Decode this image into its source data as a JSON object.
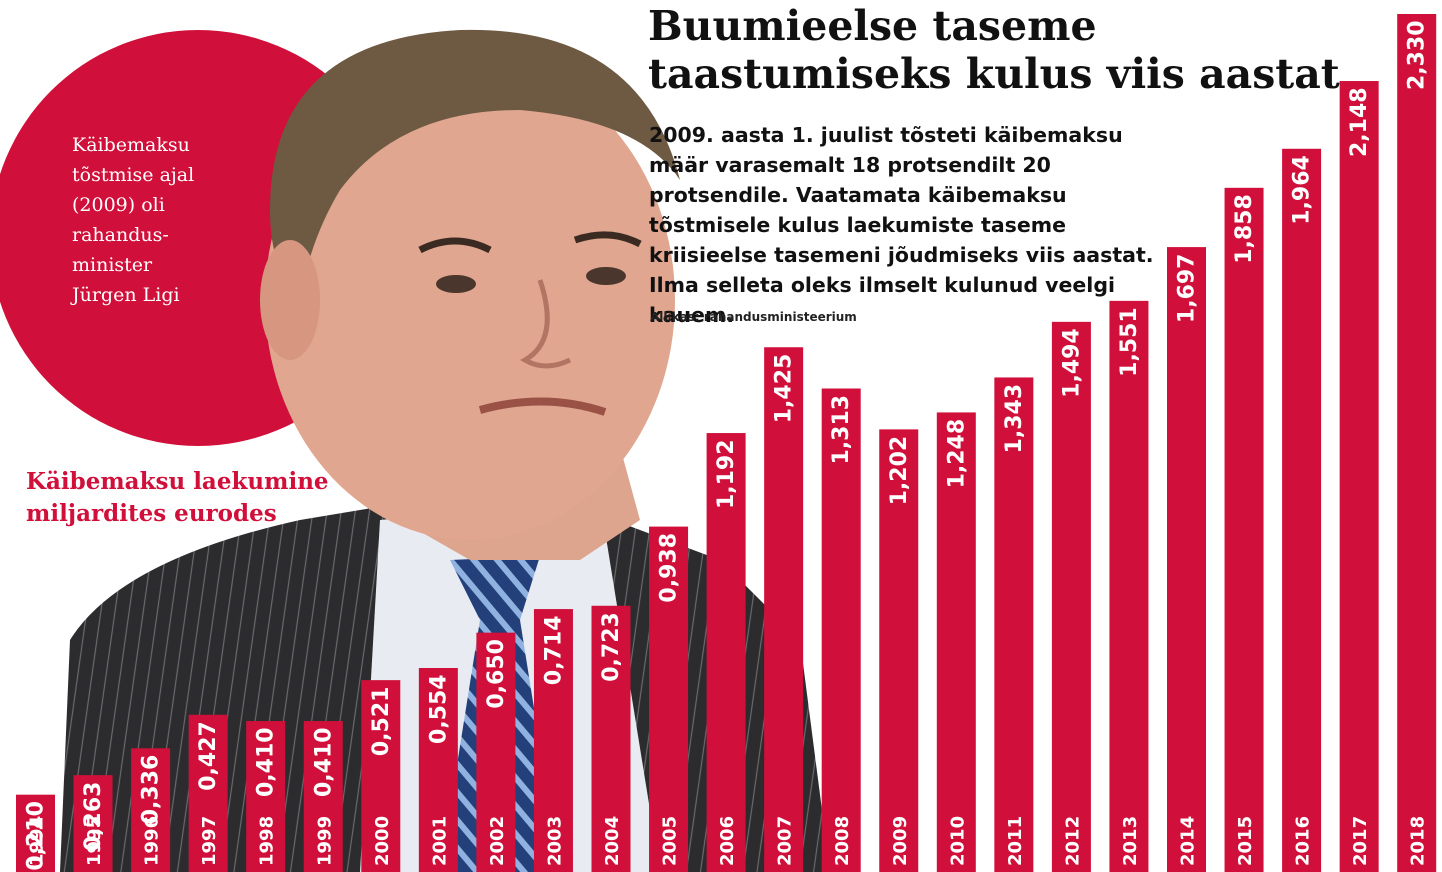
{
  "colors": {
    "accent": "#d0103a",
    "text": "#111111",
    "bar_label": "#ffffff"
  },
  "headline": "Buumieelse taseme taastumiseks kulus viis aastat",
  "description": "2009. aasta 1. juulist tõsteti käibemaksu määr varasemalt 18 protsendilt 20 protsendile. Vaatamata käibemaksu tõstmisele kulus laekumiste taseme kriisieelse tasemeni jõudmiseks viis aastat. Ilma selleta oleks ilmselt kulunud veelgi kauem.",
  "source": "Allikas: rahandusministeerium",
  "photo_caption": "Käibemaksu tõstmise ajal (2009) oli rahandus-minister Jürgen Ligi",
  "chart_data": {
    "type": "bar",
    "title": "Käibemaksu laekumine miljardites eurodes",
    "categories": [
      "1994",
      "1995",
      "1996",
      "1997",
      "1998",
      "1999",
      "2000",
      "2001",
      "2002",
      "2003",
      "2004",
      "2005",
      "2006",
      "2007",
      "2008",
      "2009",
      "2010",
      "2011",
      "2012",
      "2013",
      "2014",
      "2015",
      "2016",
      "2017",
      "2018"
    ],
    "values": [
      0.21,
      0.263,
      0.336,
      0.427,
      0.41,
      0.41,
      0.521,
      0.554,
      0.65,
      0.714,
      0.723,
      0.938,
      1.192,
      1.425,
      1.313,
      1.202,
      1.248,
      1.343,
      1.494,
      1.551,
      1.697,
      1.858,
      1.964,
      2.148,
      2.33
    ],
    "value_labels": [
      "0,210",
      "0,263",
      "0,336",
      "0,427",
      "0,410",
      "0,410",
      "0,521",
      "0,554",
      "0,650",
      "0,714",
      "0,723",
      "0,938",
      "1,192",
      "1,425",
      "1,313",
      "1,202",
      "1,248",
      "1,343",
      "1,494",
      "1,551",
      "1,697",
      "1,858",
      "1,964",
      "2,148",
      "2,330"
    ],
    "ylim": [
      0,
      2.33
    ],
    "grid": false,
    "bar_color": "#d0103a"
  }
}
